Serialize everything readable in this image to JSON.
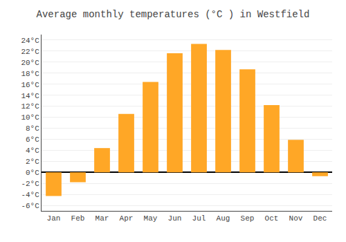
{
  "chart_data": {
    "type": "bar",
    "title": "Average monthly temperatures (°C ) in Westfield",
    "categories": [
      "Jan",
      "Feb",
      "Mar",
      "Apr",
      "May",
      "Jun",
      "Jul",
      "Aug",
      "Sep",
      "Oct",
      "Nov",
      "Dec"
    ],
    "values": [
      -4.3,
      -1.8,
      4.4,
      10.6,
      16.4,
      21.6,
      23.3,
      22.2,
      18.7,
      12.2,
      5.9,
      -0.7
    ],
    "color": "#FFA726",
    "ylim": [
      -7,
      25
    ],
    "yticks": [
      {
        "value": -6,
        "label": "-6°C"
      },
      {
        "value": -4,
        "label": "-4°C"
      },
      {
        "value": -2,
        "label": "-2°C"
      },
      {
        "value": 0,
        "label": "0°C"
      },
      {
        "value": 2,
        "label": "2°C"
      },
      {
        "value": 4,
        "label": "4°C"
      },
      {
        "value": 6,
        "label": "6°C"
      },
      {
        "value": 8,
        "label": "8°C"
      },
      {
        "value": 10,
        "label": "10°C"
      },
      {
        "value": 12,
        "label": "12°C"
      },
      {
        "value": 14,
        "label": "14°C"
      },
      {
        "value": 16,
        "label": "16°C"
      },
      {
        "value": 18,
        "label": "18°C"
      },
      {
        "value": 20,
        "label": "20°C"
      },
      {
        "value": 22,
        "label": "22°C"
      },
      {
        "value": 24,
        "label": "24°C"
      }
    ],
    "grid": true
  }
}
